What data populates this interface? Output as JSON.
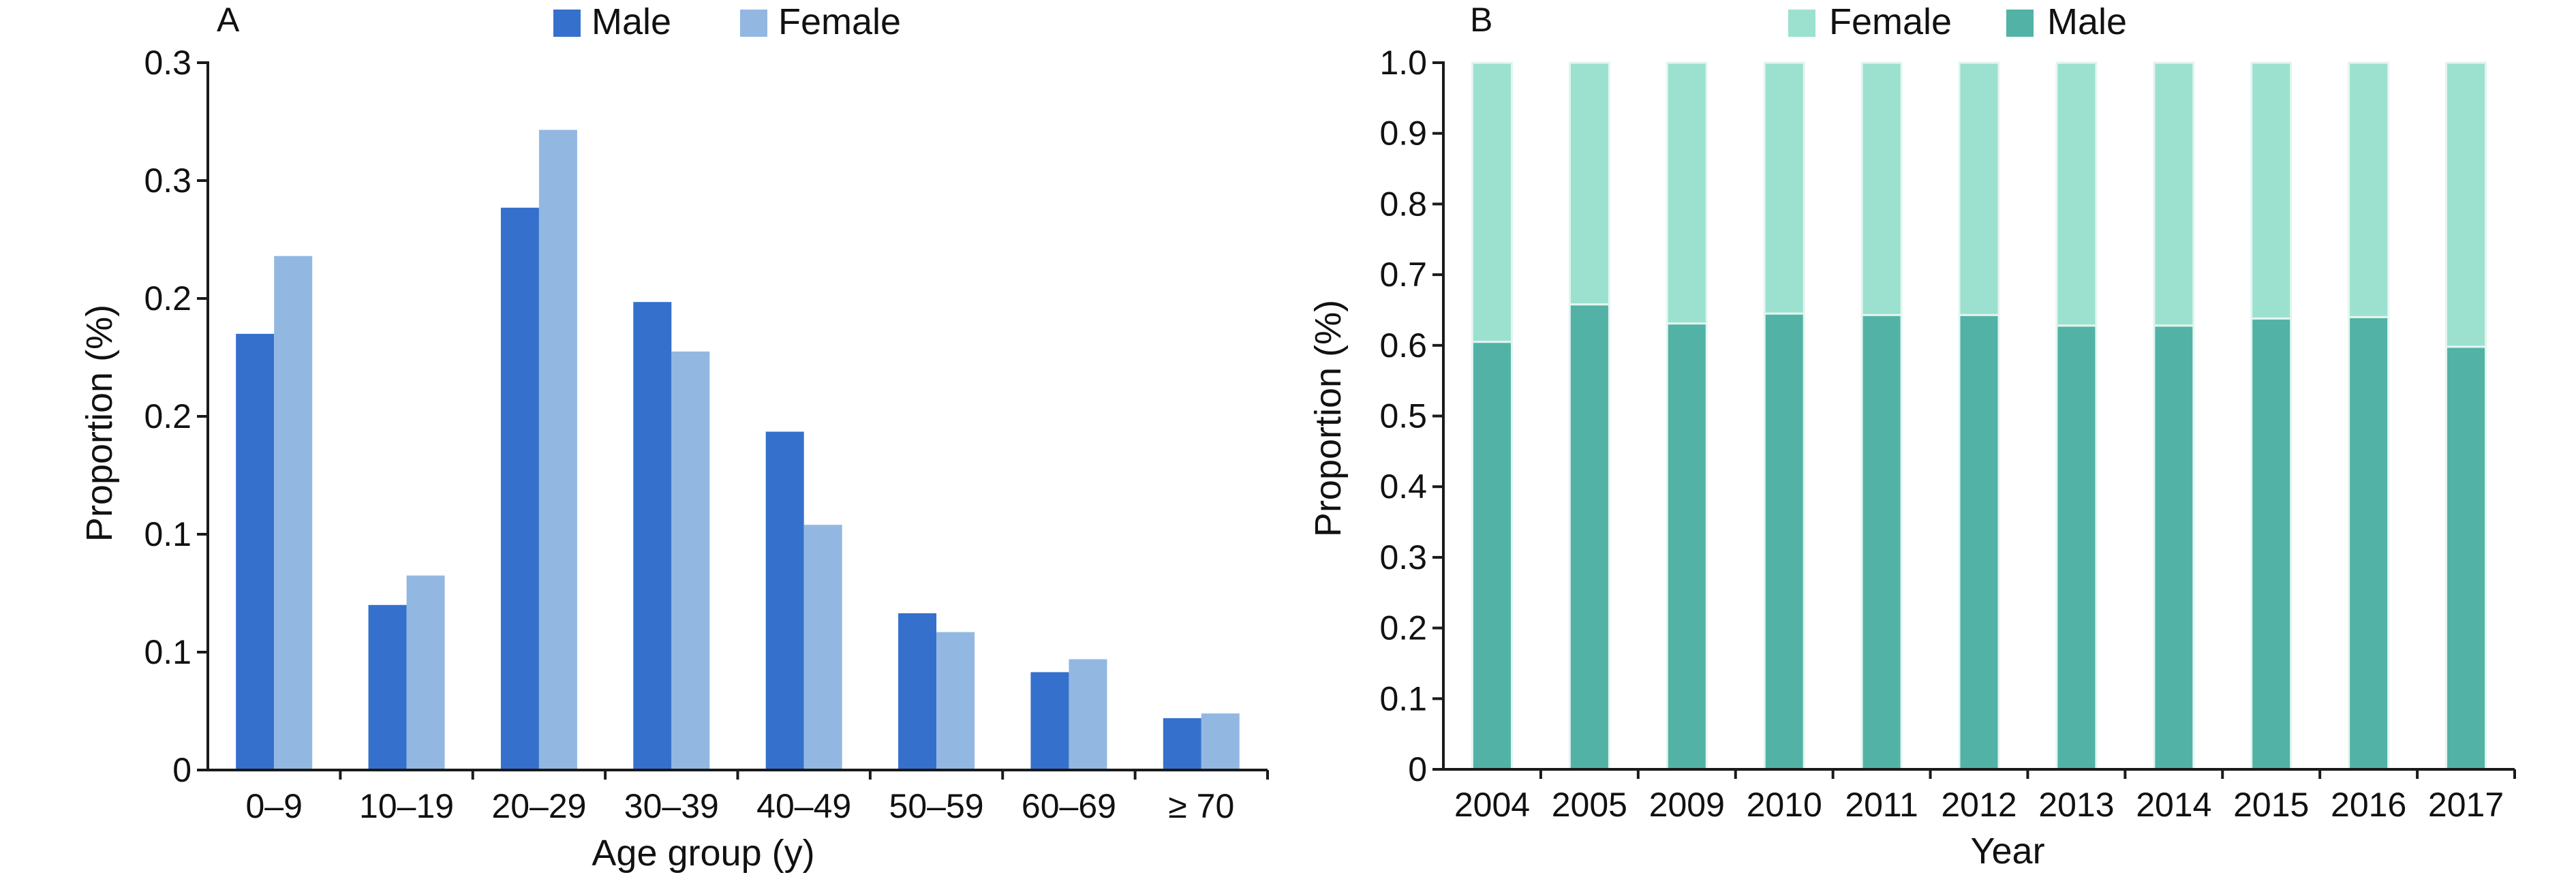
{
  "chart_data": [
    {
      "type": "bar",
      "panel_label": "A",
      "xlabel": "Age group (y)",
      "ylabel": "Proportion (%)",
      "categories": [
        "0–9",
        "10–19",
        "20–29",
        "30–39",
        "40–49",
        "50–59",
        "60–69",
        "≥ 70"
      ],
      "ylim": [
        0,
        0.3
      ],
      "yticks": [
        0,
        0.05,
        0.1,
        0.15,
        0.2,
        0.25,
        0.3
      ],
      "ytick_labels": [
        "0",
        "0.1",
        "0.1",
        "0.2",
        "0.2",
        "0.3",
        "0.3"
      ],
      "series": [
        {
          "name": "Male",
          "color": "#3570cc",
          "values": [
            0.185,
            0.07,
            0.2385,
            0.1985,
            0.1435,
            0.0665,
            0.0415,
            0.022
          ]
        },
        {
          "name": "Female",
          "color": "#92b8e2",
          "values": [
            0.218,
            0.0825,
            0.2715,
            0.1775,
            0.104,
            0.0585,
            0.047,
            0.024
          ]
        }
      ],
      "legend": "top",
      "grid": false
    },
    {
      "type": "bar",
      "stacked": true,
      "panel_label": "B",
      "xlabel": "Year",
      "ylabel": "Proportion (%)",
      "categories": [
        "2004",
        "2005",
        "2009",
        "2010",
        "2011",
        "2012",
        "2013",
        "2014",
        "2015",
        "2016",
        "2017"
      ],
      "ylim": [
        0,
        1.0
      ],
      "yticks": [
        0,
        0.1,
        0.2,
        0.3,
        0.4,
        0.5,
        0.6,
        0.7,
        0.8,
        0.9,
        1.0
      ],
      "ytick_labels": [
        "0",
        "0.1",
        "0.2",
        "0.3",
        "0.4",
        "0.5",
        "0.6",
        "0.7",
        "0.8",
        "0.9",
        "1.0"
      ],
      "series": [
        {
          "name": "Male",
          "color": "#52b2a6",
          "values": [
            0.605,
            0.658,
            0.631,
            0.645,
            0.643,
            0.643,
            0.628,
            0.628,
            0.638,
            0.64,
            0.598
          ]
        },
        {
          "name": "Female",
          "color": "#9ce1cf",
          "values": [
            0.395,
            0.342,
            0.369,
            0.355,
            0.357,
            0.357,
            0.372,
            0.372,
            0.362,
            0.36,
            0.402
          ]
        }
      ],
      "legend_order": [
        "Female",
        "Male"
      ],
      "legend": "top",
      "grid": false
    }
  ]
}
